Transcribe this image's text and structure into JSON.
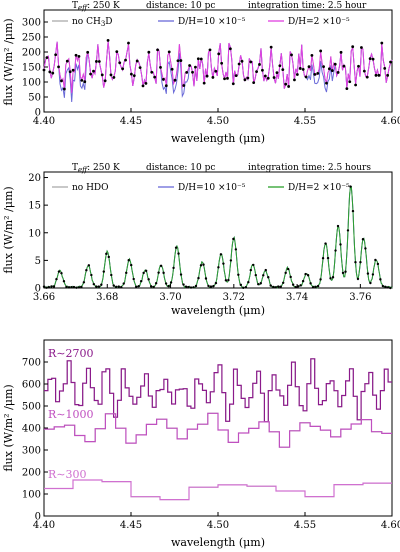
{
  "chart_data": [
    {
      "type": "line",
      "header": [
        "T_eff: 250 K",
        "distance: 10 pc",
        "integration time: 2.5 hour"
      ],
      "xlabel": "wavelength (μm)",
      "ylabel": "flux (W/m² /μm)",
      "xlim": [
        4.4,
        4.6
      ],
      "ylim": [
        0,
        340
      ],
      "xticks": [
        4.4,
        4.45,
        4.5,
        4.55,
        4.6
      ],
      "yticks": [
        0,
        50,
        100,
        150,
        200,
        250,
        300
      ],
      "xtick_labels": [
        "4.40",
        "4.45",
        "4.50",
        "4.55",
        "4.60"
      ],
      "ytick_labels": [
        "0",
        "50",
        "100",
        "150",
        "200",
        "250",
        "300"
      ],
      "legend_placement": "top",
      "series": [
        {
          "name": "no CH3D",
          "color": "#aaaaaa"
        },
        {
          "name": "D/H=10 ×10⁻⁵",
          "color": "#6a6ad8"
        },
        {
          "name": "D/H=2 ×10⁻⁵",
          "color": "#e040e0"
        }
      ],
      "grid": false
    },
    {
      "type": "line",
      "header": [
        "T_eff: 250 K",
        "distance: 10 pc",
        "integration time: 2.5 hours"
      ],
      "xlabel": "wavelength (μm)",
      "ylabel": "flux (W/m² /μm)",
      "xlim": [
        3.66,
        3.77
      ],
      "ylim": [
        0,
        21
      ],
      "xticks": [
        3.66,
        3.68,
        3.7,
        3.72,
        3.74,
        3.76
      ],
      "yticks": [
        0,
        5,
        10,
        15,
        20
      ],
      "xtick_labels": [
        "3.66",
        "3.68",
        "3.70",
        "3.72",
        "3.74",
        "3.76"
      ],
      "ytick_labels": [
        "0",
        "5",
        "10",
        "15",
        "20"
      ],
      "legend_placement": "top",
      "series": [
        {
          "name": "no HDO",
          "color": "#aaaaaa"
        },
        {
          "name": "D/H=10 ×10⁻⁵",
          "color": "#6a6ad8"
        },
        {
          "name": "D/H=2 ×10⁻⁵",
          "color": "#2ca02c"
        }
      ],
      "grid": false
    },
    {
      "type": "line",
      "xlabel": "wavelength (μm)",
      "ylabel": "flux (W/m² /μm)",
      "xlim": [
        4.4,
        4.6
      ],
      "ylim": [
        0,
        800
      ],
      "xticks": [
        4.4,
        4.45,
        4.5,
        4.55,
        4.6
      ],
      "yticks": [
        0,
        100,
        200,
        300,
        400,
        500,
        600,
        700
      ],
      "xtick_labels": [
        "4.40",
        "4.45",
        "4.50",
        "4.55",
        "4.60"
      ],
      "ytick_labels": [
        "0",
        "100",
        "200",
        "300",
        "400",
        "500",
        "600",
        "700"
      ],
      "series": [
        {
          "name": "R∼2700",
          "color": "#8b1a8b",
          "approx_range": [
            420,
            720
          ]
        },
        {
          "name": "R∼1000",
          "color": "#c050c0",
          "approx_range": [
            310,
            480
          ]
        },
        {
          "name": "R∼300",
          "color": "#d070d0",
          "approx_range": [
            60,
            190
          ]
        }
      ],
      "grid": false
    }
  ]
}
